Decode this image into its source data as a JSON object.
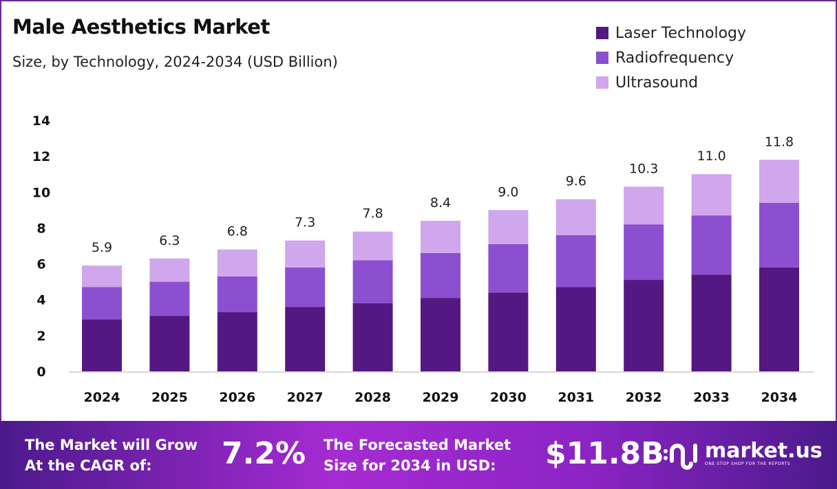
{
  "colors": {
    "laser": "#531882",
    "radio": "#8b4fcf",
    "ultra": "#d0a6ec",
    "footer_start": "#4b1a8c",
    "footer_mid": "#a52bd2"
  },
  "chart_data": {
    "type": "bar",
    "stacked": true,
    "title": "Male Aesthetics Market",
    "subtitle": "Size, by Technology, 2024-2034 (USD Billion)",
    "categories": [
      "2024",
      "2025",
      "2026",
      "2027",
      "2028",
      "2029",
      "2030",
      "2031",
      "2032",
      "2033",
      "2034"
    ],
    "series": [
      {
        "name": "Laser Technology",
        "values": [
          2.9,
          3.1,
          3.3,
          3.6,
          3.8,
          4.1,
          4.4,
          4.7,
          5.1,
          5.4,
          5.8
        ]
      },
      {
        "name": "Radiofrequency",
        "values": [
          1.8,
          1.9,
          2.0,
          2.2,
          2.4,
          2.5,
          2.7,
          2.9,
          3.1,
          3.3,
          3.6
        ]
      },
      {
        "name": "Ultrasound",
        "values": [
          1.2,
          1.3,
          1.5,
          1.5,
          1.6,
          1.8,
          1.9,
          2.0,
          2.1,
          2.3,
          2.4
        ]
      }
    ],
    "totals": [
      "5.9",
      "6.3",
      "6.8",
      "7.3",
      "7.8",
      "8.4",
      "9.0",
      "9.6",
      "10.3",
      "11.0",
      "11.8"
    ],
    "yticks": [
      "0",
      "2",
      "4",
      "6",
      "8",
      "10",
      "12",
      "14"
    ],
    "ylim": [
      0,
      14
    ],
    "grid": false,
    "legend_position": "top-right"
  },
  "footer": {
    "cagr_text_1": "The Market will Grow",
    "cagr_text_2": "At the CAGR of:",
    "cagr_value": "7.2%",
    "forecast_text_1": "The Forecasted Market",
    "forecast_text_2": "Size for 2034 in USD:",
    "forecast_value": "$11.8B",
    "logo_name": "market.us",
    "logo_tagline": "ONE STOP SHOP FOR THE REPORTS"
  }
}
